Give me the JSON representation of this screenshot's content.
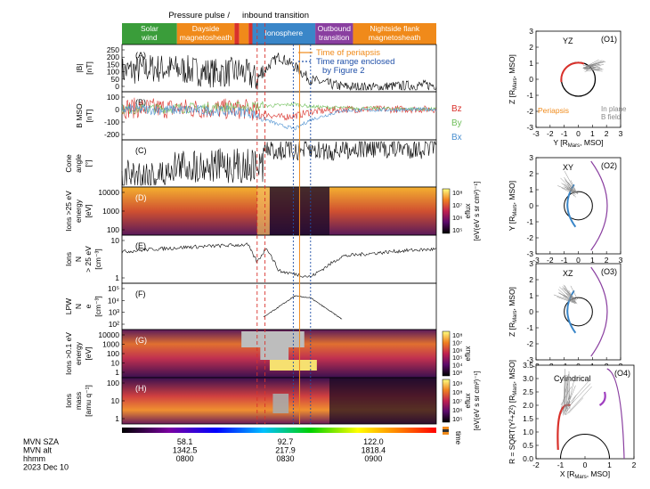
{
  "region_bar": [
    {
      "label_lines": [
        "Solar",
        "wind"
      ],
      "color": "#3a9d3a"
    },
    {
      "label_lines": [
        "Dayside",
        "magnetosheath"
      ],
      "color": "#f08a1a"
    },
    {
      "label_lines": [
        ""
      ],
      "color": "#d9312b"
    },
    {
      "label_lines": [
        ""
      ],
      "color": "#f08a1a"
    },
    {
      "label_lines": [
        ""
      ],
      "color": "#d9312b"
    },
    {
      "label_lines": [
        "Ionosphere"
      ],
      "color": "#3a86c8"
    },
    {
      "label_lines": [
        "Outbound",
        "transition"
      ],
      "color": "#8a3fa0"
    },
    {
      "label_lines": [
        "Nightside flank",
        "magnetosheath"
      ],
      "color": "#f08a1a"
    }
  ],
  "region_edges": [
    0,
    0.175,
    0.358,
    0.373,
    0.403,
    0.415,
    0.615,
    0.735,
    1.0
  ],
  "top_annotations": {
    "pressure_pulse": "Pressure pulse /",
    "inbound": "inbound transition"
  },
  "panels": [
    {
      "letter": "(A)",
      "ylabel": "|B|",
      "unit": "[nT]",
      "ticks": [
        "250",
        "200",
        "150",
        "100",
        "50",
        "0"
      ]
    },
    {
      "letter": "(B)",
      "ylabel": "B MSO",
      "unit": "[nT]",
      "ticks": [
        "100",
        "0",
        "-100",
        "-200"
      ]
    },
    {
      "letter": "(C)",
      "ylabel_lines": [
        "Cone",
        "angle"
      ],
      "unit": "[°]",
      "ticks": []
    },
    {
      "letter": "(D)",
      "ylabel_lines": [
        "Ions >25 eV",
        "energy"
      ],
      "unit": "[eV]",
      "ticks": [
        "10000",
        "1000",
        "100"
      ]
    },
    {
      "letter": "(E)",
      "ylabel_lines": [
        "Ions",
        "N",
        "> 25 eV"
      ],
      "unit": "[cm⁻³]",
      "ticks": [
        "10",
        "1"
      ]
    },
    {
      "letter": "(F)",
      "ylabel_lines": [
        "LPW",
        "N",
        "e"
      ],
      "unit": "[cm⁻³]",
      "ticks": [
        "10⁵",
        "10⁴",
        "10³",
        "10²"
      ]
    },
    {
      "letter": "(G)",
      "ylabel_lines": [
        "Ions >0.1 eV",
        "energy"
      ],
      "unit": "[eV]",
      "ticks": [
        "10000",
        "1000",
        "100",
        "10",
        "1"
      ]
    },
    {
      "letter": "(H)",
      "ylabel_lines": [
        "Ions",
        "mass"
      ],
      "unit": "[amu q⁻¹]",
      "ticks": [
        "100",
        "10",
        "1"
      ]
    }
  ],
  "legend_a": {
    "periapsis": "Time of periapsis",
    "range_1": "Time range enclosed",
    "range_2": "by Figure 2"
  },
  "legend_b": {
    "bz": "Bz",
    "by": "By",
    "bx": "Bx"
  },
  "colorbars": [
    {
      "ticks": [
        "10⁸",
        "10⁷",
        "10⁶",
        "10⁵"
      ],
      "label": "eflux",
      "unit": "[eV(eV s sr cm²)⁻¹]"
    },
    {
      "ticks": [
        "10⁸",
        "10⁷",
        "10⁶",
        "10⁵",
        "10⁴",
        "10³"
      ],
      "label": "eflux",
      "unit": ""
    },
    {
      "ticks": [
        "10⁹",
        "10⁸",
        "10⁷",
        "10⁶",
        "10⁵"
      ],
      "label": "eflux",
      "unit": "[eV(eV s sr cm²)⁻¹]"
    }
  ],
  "time_colorbar_label": "time",
  "time_axis": {
    "row_labels": [
      "MVN SZA",
      "MVN alt",
      "hhmm",
      "2023 Dec 10"
    ],
    "columns": [
      {
        "sza": "58.1",
        "alt": "1342.5",
        "hhmm": "0800"
      },
      {
        "sza": "92.7",
        "alt": "217.9",
        "hhmm": "0830"
      },
      {
        "sza": "122.0",
        "alt": "1818.4",
        "hhmm": "0900"
      }
    ]
  },
  "orbit_panels": [
    {
      "id": "(O1)",
      "plane": "YZ",
      "xlabel": "Y [R",
      "xlabel2": "Mars",
      "xlabel3": ", MSO]",
      "ylabel": "Z [R",
      "ylabel2": "Mars",
      "ylabel3": ", MSO]",
      "xticks": [
        "-3",
        "-2",
        "-1",
        "0",
        "1",
        "2",
        "3"
      ],
      "yticks": [
        "3",
        "2",
        "1",
        "0",
        "-1",
        "-2",
        "-3"
      ],
      "legend_left": "Periapsis",
      "legend_right_1": "In plane",
      "legend_right_2": "B field"
    },
    {
      "id": "(O2)",
      "plane": "XY",
      "xlabel": "X [R",
      "xlabel2": "Mars",
      "xlabel3": ", MSO]",
      "ylabel": "Y [R",
      "ylabel2": "Mars",
      "ylabel3": ", MSO]",
      "xticks": [
        "-3",
        "-2",
        "-1",
        "0",
        "1",
        "2",
        "3"
      ],
      "yticks": [
        "3",
        "2",
        "1",
        "0",
        "-1",
        "-2",
        "-3"
      ]
    },
    {
      "id": "(O3)",
      "plane": "XZ",
      "xlabel": "X [R",
      "xlabel2": "Mars",
      "xlabel3": ", MSO]",
      "ylabel": "Z [R",
      "ylabel2": "Mars",
      "ylabel3": ", MSO]",
      "xticks": [
        "-3",
        "-2",
        "-1",
        "0",
        "1",
        "2",
        "3"
      ],
      "yticks": [
        "3",
        "2",
        "1",
        "0",
        "-1",
        "-2",
        "-3"
      ]
    },
    {
      "id": "(O4)",
      "plane": "Cylindrical",
      "xlabel": "X [R",
      "xlabel2": "Mars",
      "xlabel3": ", MSO]",
      "ylabel": "R = SQRT(Y²+Z²) [R",
      "ylabel2": "Mars",
      "ylabel3": ", MSO]",
      "xticks": [
        "-2",
        "-1",
        "0",
        "1",
        "2"
      ],
      "yticks": [
        "3.5",
        "3.0",
        "2.5",
        "2.0",
        "1.5",
        "1.0",
        "0.5",
        "0.0"
      ]
    }
  ],
  "colors": {
    "periapsis": "#f08a1a",
    "range": "#1f4fa8",
    "pulse": "#d9312b",
    "bz": "#d9312b",
    "by": "#6fbf5a",
    "bx": "#4a8fd0",
    "bowshock": "#8a3fa0"
  },
  "chart_data": {
    "type": "line",
    "x_ticks": [
      "0800",
      "0830",
      "0900"
    ],
    "x_tick_frac": [
      0.2,
      0.52,
      0.8
    ],
    "periapsis_frac": 0.565,
    "figure2_range_frac": [
      0.545,
      0.6
    ],
    "pulse_frac": [
      0.43,
      0.455
    ],
    "series": [
      {
        "name": "|B|",
        "x": [
          0.0,
          0.1,
          0.2,
          0.3,
          0.38,
          0.43,
          0.47,
          0.5,
          0.55,
          0.6,
          0.7,
          0.8,
          0.9,
          1.0
        ],
        "values": [
          110,
          130,
          120,
          100,
          110,
          60,
          150,
          200,
          140,
          60,
          20,
          15,
          25,
          30
        ]
      },
      {
        "name": "Bz",
        "x": [
          0.0,
          0.2,
          0.4,
          0.5,
          0.55,
          0.6,
          0.7,
          1.0
        ],
        "values": [
          10,
          5,
          0,
          -60,
          -50,
          -20,
          0,
          0
        ]
      },
      {
        "name": "By",
        "x": [
          0.0,
          0.2,
          0.4,
          0.5,
          0.55,
          0.6,
          0.7,
          1.0
        ],
        "values": [
          0,
          10,
          20,
          30,
          40,
          20,
          10,
          0
        ]
      },
      {
        "name": "Bx",
        "x": [
          0.0,
          0.2,
          0.4,
          0.5,
          0.55,
          0.6,
          0.7,
          1.0
        ],
        "values": [
          0,
          -5,
          -20,
          -120,
          -150,
          -80,
          -10,
          0
        ]
      },
      {
        "name": "Ions N > 25 eV",
        "x": [
          0.0,
          0.1,
          0.2,
          0.3,
          0.4,
          0.43,
          0.46,
          0.5,
          0.6,
          0.7,
          0.8,
          0.9,
          1.0
        ],
        "values": [
          10,
          15,
          20,
          25,
          30,
          2,
          20,
          0.5,
          0.2,
          5,
          8,
          12,
          15
        ]
      },
      {
        "name": "LPW Ne",
        "x": [
          0.45,
          0.5,
          0.55,
          0.6,
          0.65,
          0.7
        ],
        "values": [
          300,
          3000,
          30000,
          20000,
          2000,
          200
        ]
      }
    ]
  }
}
